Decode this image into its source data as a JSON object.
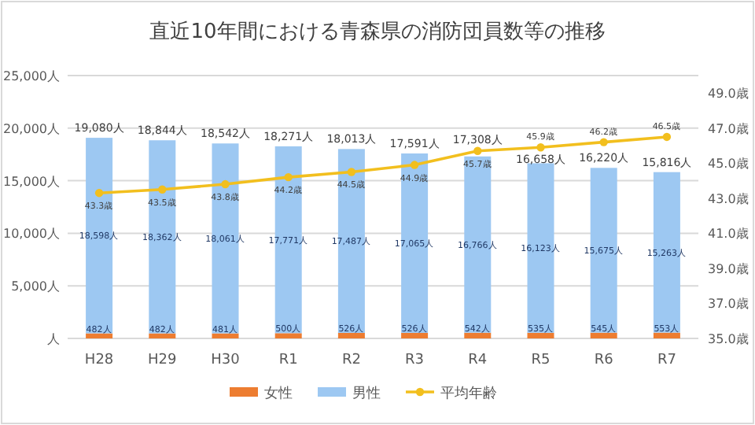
{
  "chart_data": {
    "type": "bar",
    "stacked": true,
    "title": "直近10年間における青森県の消防団員数等の推移",
    "categories": [
      "H28",
      "H29",
      "H30",
      "R1",
      "R2",
      "R3",
      "R4",
      "R5",
      "R6",
      "R7"
    ],
    "series": [
      {
        "name": "女性",
        "color": "#ed7d31",
        "values": [
          482,
          482,
          481,
          500,
          526,
          526,
          542,
          535,
          545,
          553
        ],
        "value_labels": [
          "482人",
          "482人",
          "481人",
          "500人",
          "526人",
          "526人",
          "542人",
          "535人",
          "545人",
          "553人"
        ]
      },
      {
        "name": "男性",
        "color": "#9dc8f2",
        "values": [
          18598,
          18362,
          18061,
          17771,
          17487,
          17065,
          16766,
          16123,
          15675,
          15263
        ],
        "value_labels": [
          "18,598人",
          "18,362人",
          "18,061人",
          "17,771人",
          "17,487人",
          "17,065人",
          "16,766人",
          "16,123人",
          "15,675人",
          "15,263人"
        ]
      },
      {
        "name": "平均年齢",
        "type": "line",
        "axis": "y2",
        "color": "#f2bf1e",
        "values": [
          43.3,
          43.5,
          43.8,
          44.2,
          44.5,
          44.9,
          45.7,
          45.9,
          46.2,
          46.5
        ],
        "value_labels": [
          "43.3歳",
          "43.5歳",
          "43.8歳",
          "44.2歳",
          "44.5歳",
          "44.9歳",
          "45.7歳",
          "45.9歳",
          "46.2歳",
          "46.5歳"
        ]
      }
    ],
    "totals": [
      "19,080人",
      "18,844人",
      "18,542人",
      "18,271人",
      "18,013人",
      "17,591人",
      "17,308人",
      "16,658人",
      "16,220人",
      "15,816人"
    ],
    "ylim": [
      0,
      25000
    ],
    "yticks": [
      {
        "value": 0,
        "label": "人"
      },
      {
        "value": 5000,
        "label": "5,000人"
      },
      {
        "value": 10000,
        "label": "10,000人"
      },
      {
        "value": 15000,
        "label": "15,000人"
      },
      {
        "value": 20000,
        "label": "20,000人"
      },
      {
        "value": 25000,
        "label": "25,000人"
      }
    ],
    "y2lim": [
      35,
      50
    ],
    "y2ticks": [
      {
        "value": 35,
        "label": "35.0歳"
      },
      {
        "value": 37,
        "label": "37.0歳"
      },
      {
        "value": 39,
        "label": "39.0歳"
      },
      {
        "value": 41,
        "label": "41.0歳"
      },
      {
        "value": 43,
        "label": "43.0歳"
      },
      {
        "value": 45,
        "label": "45.0歳"
      },
      {
        "value": 47,
        "label": "47.0歳"
      },
      {
        "value": 49,
        "label": "49.0歳"
      }
    ],
    "grid": "y",
    "legend": "bottom",
    "marker": "circle"
  }
}
